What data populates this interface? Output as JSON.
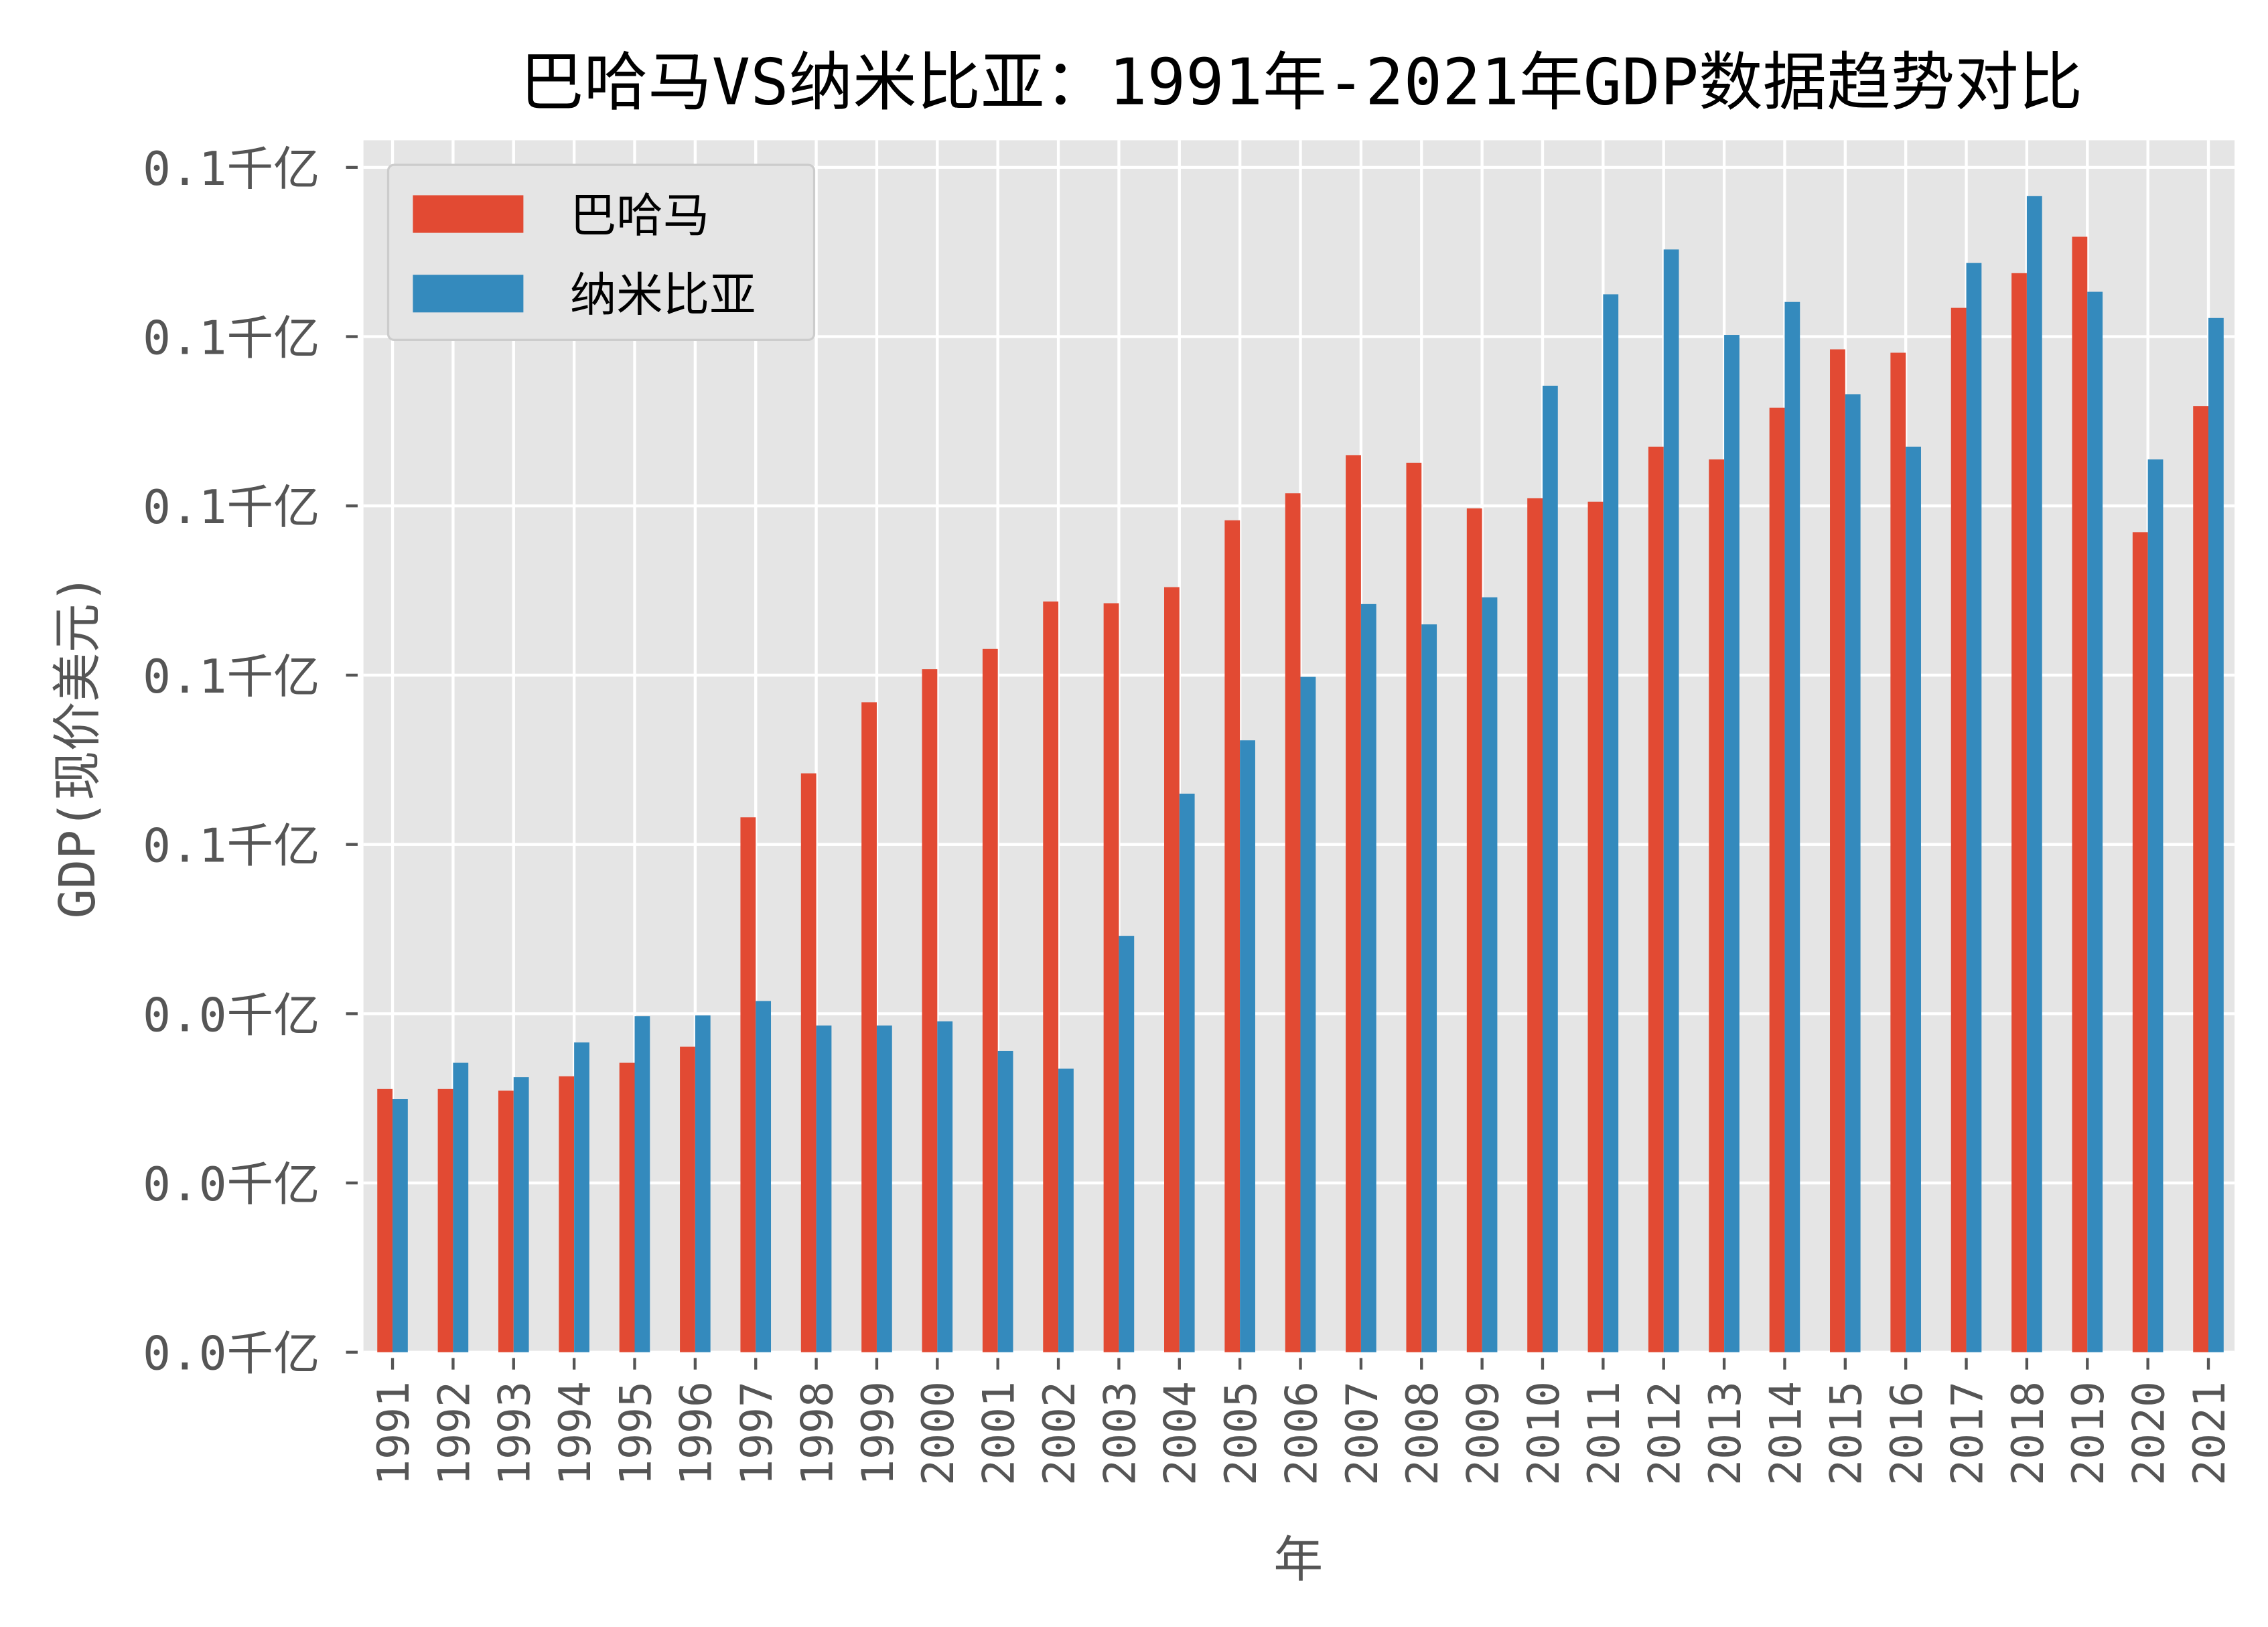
{
  "chart_data": {
    "type": "bar",
    "title": "巴哈马VS纳米比亚：1991年-2021年GDP数据趋势对比",
    "xlabel": "年",
    "ylabel": "GDP(现价美元)",
    "ylim": [
      0,
      0.1432
    ],
    "yticks": [
      0,
      0.02,
      0.04,
      0.06,
      0.08,
      0.1,
      0.12,
      0.14
    ],
    "ytick_labels": [
      "0.0千亿",
      "0.0千亿",
      "0.0千亿",
      "0.1千亿",
      "0.1千亿",
      "0.1千亿",
      "0.1千亿",
      "0.1千亿"
    ],
    "grid": true,
    "legend_position": "top-left",
    "categories": [
      "1991",
      "1992",
      "1993",
      "1994",
      "1995",
      "1996",
      "1997",
      "1998",
      "1999",
      "2000",
      "2001",
      "2002",
      "2003",
      "2004",
      "2005",
      "2006",
      "2007",
      "2008",
      "2009",
      "2010",
      "2011",
      "2012",
      "2013",
      "2014",
      "2015",
      "2016",
      "2017",
      "2018",
      "2019",
      "2020",
      "2021"
    ],
    "series": [
      {
        "name": "巴哈马",
        "color": "#E24A33",
        "values": [
          0.0311,
          0.0311,
          0.0309,
          0.0326,
          0.0342,
          0.0361,
          0.0632,
          0.0684,
          0.0768,
          0.0807,
          0.0831,
          0.0887,
          0.0885,
          0.0904,
          0.0983,
          0.1015,
          0.106,
          0.1051,
          0.0997,
          0.1009,
          0.1005,
          0.107,
          0.1055,
          0.1116,
          0.1185,
          0.1181,
          0.1234,
          0.1275,
          0.1318,
          0.0969,
          0.1118
        ]
      },
      {
        "name": "纳米比亚",
        "color": "#348ABD",
        "values": [
          0.0299,
          0.0342,
          0.0325,
          0.0366,
          0.0397,
          0.0398,
          0.0415,
          0.0386,
          0.0386,
          0.0391,
          0.0356,
          0.0335,
          0.0492,
          0.066,
          0.0723,
          0.0798,
          0.0884,
          0.086,
          0.0892,
          0.1142,
          0.125,
          0.1303,
          0.1202,
          0.1241,
          0.1132,
          0.107,
          0.1287,
          0.1366,
          0.1253,
          0.1055,
          0.1222
        ]
      }
    ]
  }
}
